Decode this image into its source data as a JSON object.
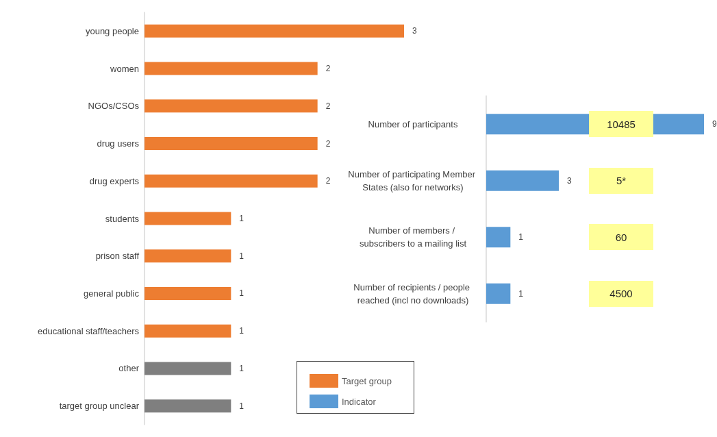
{
  "chart_data": [
    {
      "type": "bar",
      "orientation": "horizontal",
      "categories": [
        "young people",
        "women",
        "NGOs/CSOs",
        "drug users",
        "drug experts",
        "students",
        "prison staff",
        "general public",
        "educational staff/teachers",
        "other",
        "target group unclear"
      ],
      "series": [
        {
          "name": "Target group",
          "color": "#ed7d31",
          "colors": [
            "#ed7d31",
            "#ed7d31",
            "#ed7d31",
            "#ed7d31",
            "#ed7d31",
            "#ed7d31",
            "#ed7d31",
            "#ed7d31",
            "#ed7d31",
            "#7f7f7f",
            "#7f7f7f"
          ],
          "values": [
            3,
            2,
            2,
            2,
            2,
            1,
            1,
            1,
            1,
            1,
            1
          ]
        }
      ],
      "data_labels": true,
      "legend": "bottom"
    },
    {
      "type": "bar",
      "orientation": "horizontal",
      "categories": [
        "Number of participants",
        "Number of participating Member States (also for networks)",
        "Number of members / subscribers to a mailing list",
        "Number of recipients / people reached (incl no downloads)"
      ],
      "series": [
        {
          "name": "Indicator",
          "color": "#5b9bd5",
          "values": [
            9,
            3,
            1,
            1
          ]
        }
      ],
      "annotations": [
        "10485",
        "5*",
        "60",
        "4500"
      ],
      "data_labels": true,
      "legend": "bottom"
    }
  ]
}
